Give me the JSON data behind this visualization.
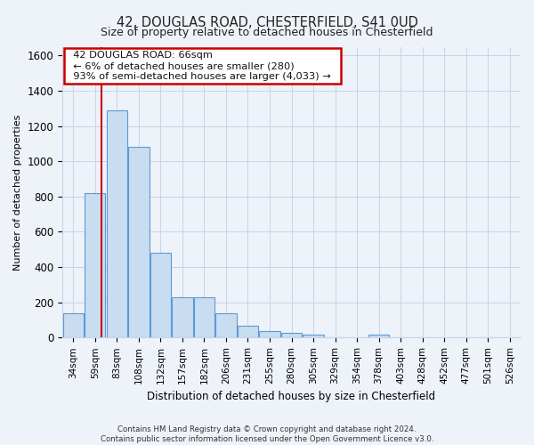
{
  "title": "42, DOUGLAS ROAD, CHESTERFIELD, S41 0UD",
  "subtitle": "Size of property relative to detached houses in Chesterfield",
  "xlabel": "Distribution of detached houses by size in Chesterfield",
  "ylabel": "Number of detached properties",
  "footer_line1": "Contains HM Land Registry data © Crown copyright and database right 2024.",
  "footer_line2": "Contains public sector information licensed under the Open Government Licence v3.0.",
  "bar_labels": [
    "34sqm",
    "59sqm",
    "83sqm",
    "108sqm",
    "132sqm",
    "157sqm",
    "182sqm",
    "206sqm",
    "231sqm",
    "255sqm",
    "280sqm",
    "305sqm",
    "329sqm",
    "354sqm",
    "378sqm",
    "403sqm",
    "428sqm",
    "452sqm",
    "477sqm",
    "501sqm",
    "526sqm"
  ],
  "bar_values": [
    140,
    820,
    1290,
    1080,
    480,
    230,
    230,
    140,
    65,
    35,
    25,
    15,
    0,
    0,
    15,
    0,
    0,
    0,
    0,
    0,
    0
  ],
  "bar_color": "#c9ddf0",
  "bar_edge_color": "#5b9bd5",
  "grid_color": "#c8d4e8",
  "bg_color": "#eef2f9",
  "annotation_line1": "42 DOUGLAS ROAD: 66sqm",
  "annotation_line2": "← 6% of detached houses are smaller (280)",
  "annotation_line3": "93% of semi-detached houses are larger (4,033) →",
  "annotation_box_color": "#ffffff",
  "annotation_border_color": "#cc0000",
  "property_line_color": "#cc0000",
  "ylim": [
    0,
    1650
  ],
  "yticks": [
    0,
    200,
    400,
    600,
    800,
    1000,
    1200,
    1400,
    1600
  ]
}
